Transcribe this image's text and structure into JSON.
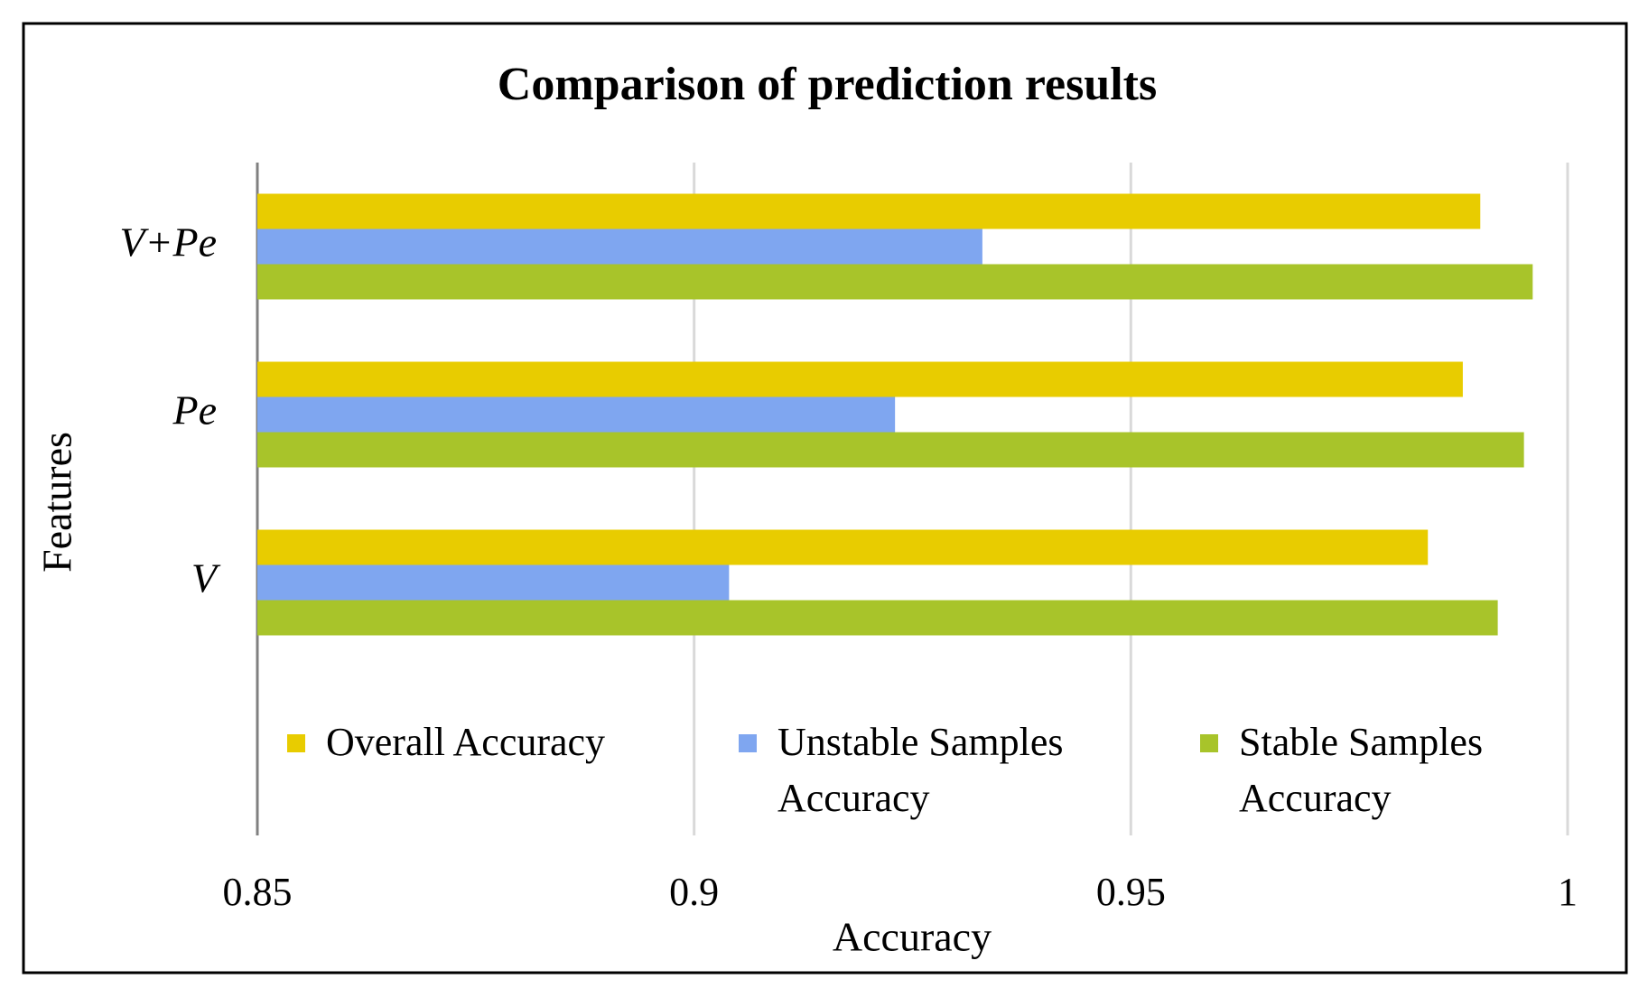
{
  "chart_data": {
    "type": "hbar",
    "title": "Comparison of prediction results",
    "x_label": "Accuracy",
    "y_label": "Features",
    "categories": [
      "V",
      "Pe",
      "V+Pe"
    ],
    "series": [
      {
        "name": "Overall Accuracy",
        "color": "#e8cc00",
        "values": [
          0.984,
          0.988,
          0.99
        ]
      },
      {
        "name": "Unstable Samples Accuracy",
        "color": "#7fa6f0",
        "values": [
          0.904,
          0.923,
          0.933
        ]
      },
      {
        "name": "Stable Samples Accuracy",
        "color": "#a8c42a",
        "values": [
          0.992,
          0.995,
          0.996
        ]
      }
    ],
    "xlim": [
      0.85,
      1
    ],
    "xticks": [
      0.85,
      0.9,
      0.95,
      1
    ],
    "grid": true,
    "legend": "bottom"
  }
}
